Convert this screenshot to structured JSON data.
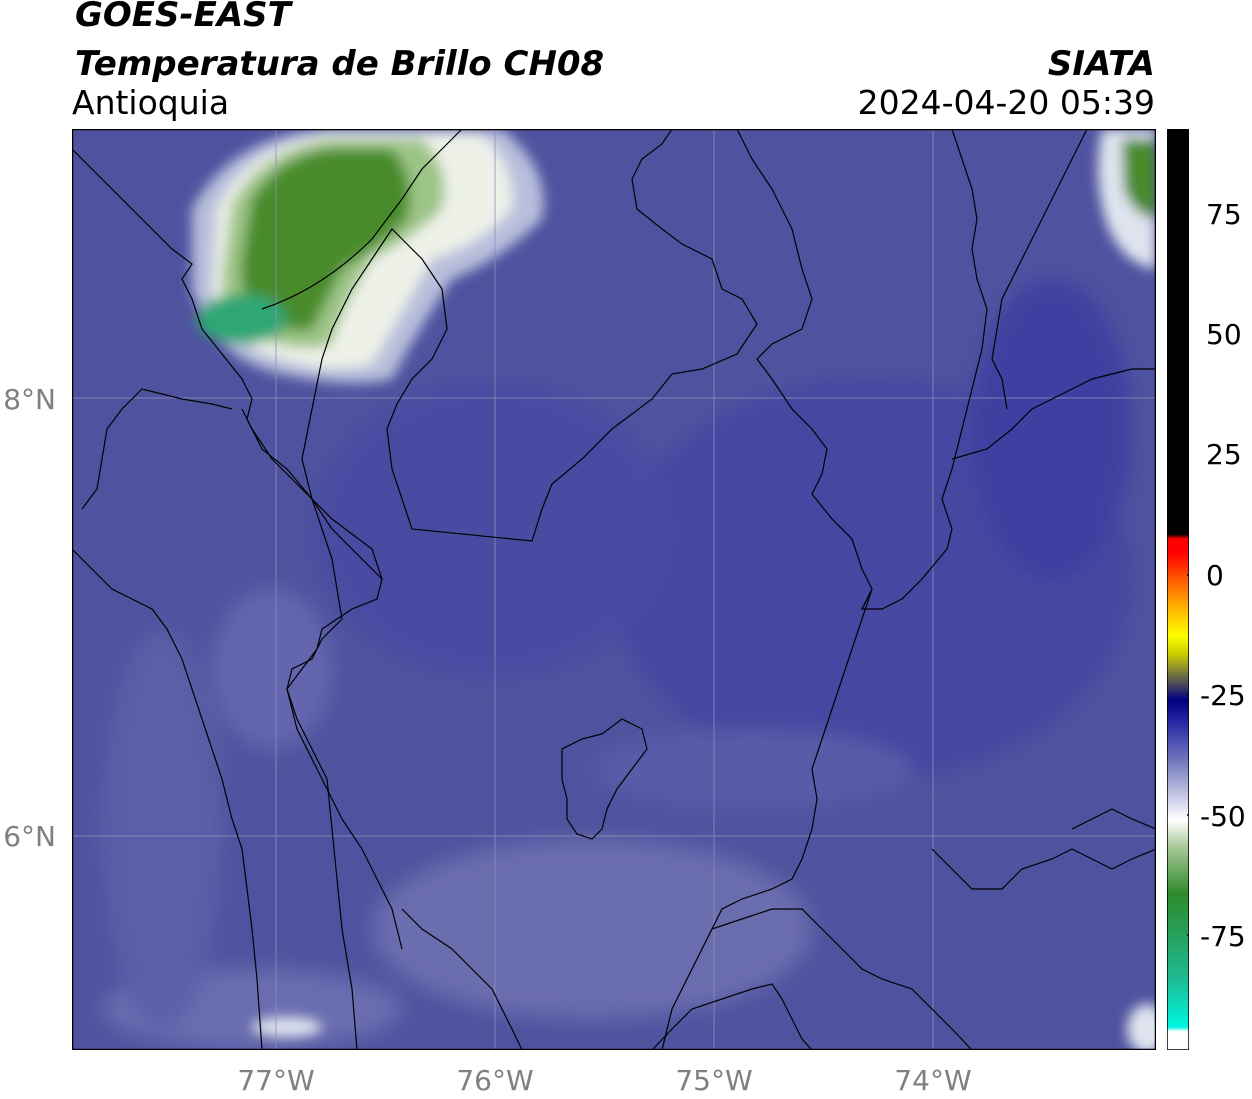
{
  "header": {
    "satellite": "GOES-EAST",
    "product": "Temperatura de Brillo CH08",
    "region": "Antioquia",
    "agency": "SIATA",
    "datetime": "2024-04-20 05:39"
  },
  "map": {
    "lat_labels": [
      "8°N",
      "6°N"
    ],
    "lon_labels": [
      "77°W",
      "76°W",
      "75°W",
      "74°W"
    ],
    "gridlines": true
  },
  "colorbar": {
    "ticks": [
      "75",
      "50",
      "25",
      "0",
      "-25",
      "-50",
      "-75"
    ],
    "range": [
      -95,
      90
    ],
    "colors": {
      "warm": "#000000",
      "red": "#ff0000",
      "orange": "#ff9900",
      "yellow": "#ffff00",
      "navy": "#000080",
      "blue": "#4a4ea0",
      "white": "#ffffff",
      "green": "#3a8a20",
      "cyan": "#00e5d5"
    }
  }
}
